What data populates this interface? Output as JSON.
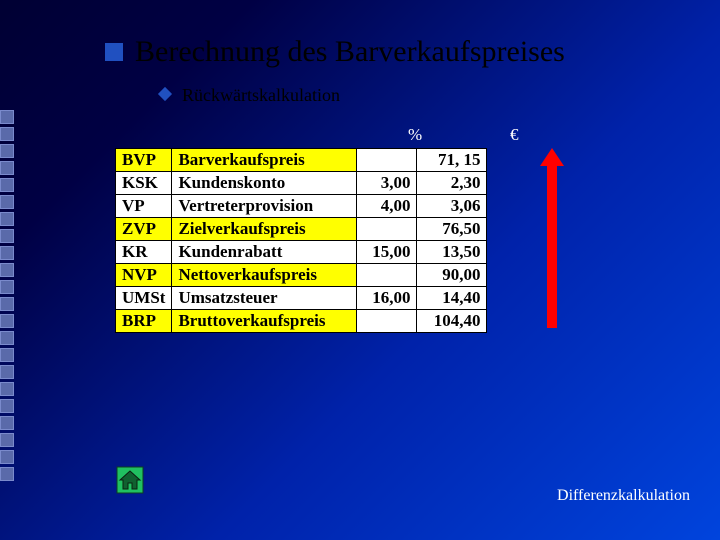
{
  "title": "Berechnung des Barverkaufspreises",
  "subtitle": "Rückwärtskalkulation",
  "columns": {
    "pct": "%",
    "eur": "€"
  },
  "rows": [
    {
      "abbr": "BVP",
      "label": "Barverkaufspreis",
      "pct": "",
      "eur": "71, 15",
      "highlight": true
    },
    {
      "abbr": "KSK",
      "label": "Kundenskonto",
      "pct": "3,00",
      "eur": "2,30",
      "highlight": false
    },
    {
      "abbr": "VP",
      "label": "Vertreterprovision",
      "pct": "4,00",
      "eur": "3,06",
      "highlight": false
    },
    {
      "abbr": "ZVP",
      "label": "Zielverkaufspreis",
      "pct": "",
      "eur": "76,50",
      "highlight": true
    },
    {
      "abbr": "KR",
      "label": "Kundenrabatt",
      "pct": "15,00",
      "eur": "13,50",
      "highlight": false
    },
    {
      "abbr": "NVP",
      "label": "Nettoverkaufspreis",
      "pct": "",
      "eur": "90,00",
      "highlight": true
    },
    {
      "abbr": "UMSt",
      "label": "Umsatzsteuer",
      "pct": "16,00",
      "eur": "14,40",
      "highlight": false
    },
    {
      "abbr": "BRP",
      "label": "Bruttoverkaufspreis",
      "pct": "",
      "eur": "104,40",
      "highlight": true
    }
  ],
  "footer_link": "Differenzkalkulation",
  "style": {
    "highlight_bg": "#ffff00",
    "arrow_color": "#ff0000",
    "bullet_color": "#2050c0",
    "side_square_count": 22
  }
}
